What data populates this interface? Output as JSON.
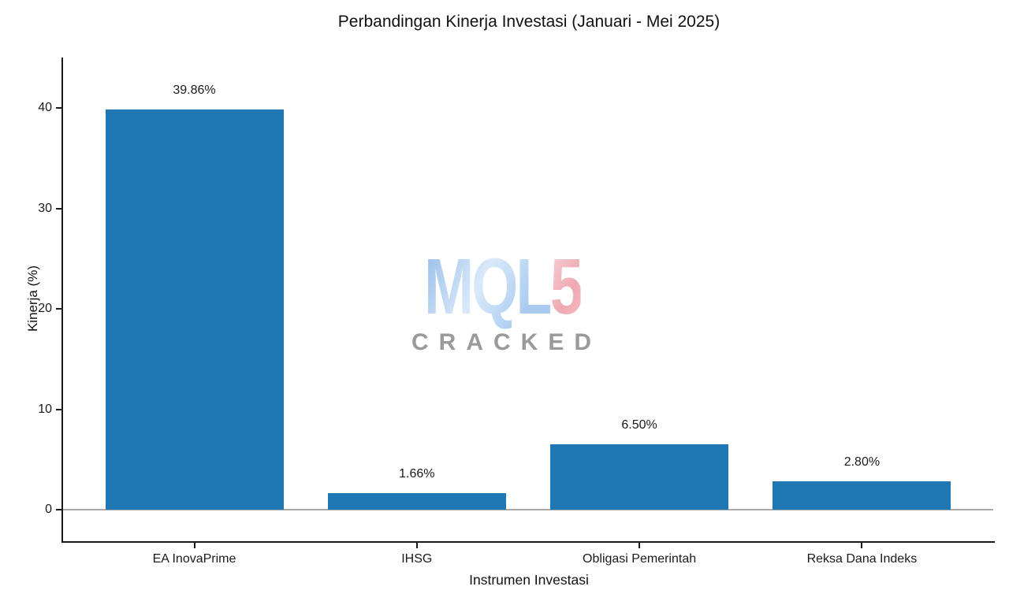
{
  "chart_data": {
    "type": "bar",
    "title": "Perbandingan Kinerja Investasi (Januari - Mei 2025)",
    "xlabel": "Instrumen Investasi",
    "ylabel": "Kinerja (%)",
    "categories": [
      "EA InovaPrime",
      "IHSG",
      "Obligasi Pemerintah",
      "Reksa Dana Indeks"
    ],
    "values": [
      39.86,
      1.66,
      6.5,
      2.8
    ],
    "value_labels": [
      "39.86%",
      "1.66%",
      "6.50%",
      "2.80%"
    ],
    "yticks": [
      0,
      10,
      20,
      30,
      40
    ],
    "ylim": [
      -3.3,
      45
    ],
    "grid": false,
    "legend": null,
    "bar_color": "#1f77b4",
    "zero_line_color": "#aaaaaa",
    "axis_color": "#1a1a1a"
  },
  "watermark": {
    "logo_part1": "MQL",
    "logo_part2": "5",
    "subtitle": "CRACKED",
    "logo_blue": "#aecdf0",
    "logo_pink": "#f3b9c1",
    "subtitle_color": "#9a9a9a"
  }
}
